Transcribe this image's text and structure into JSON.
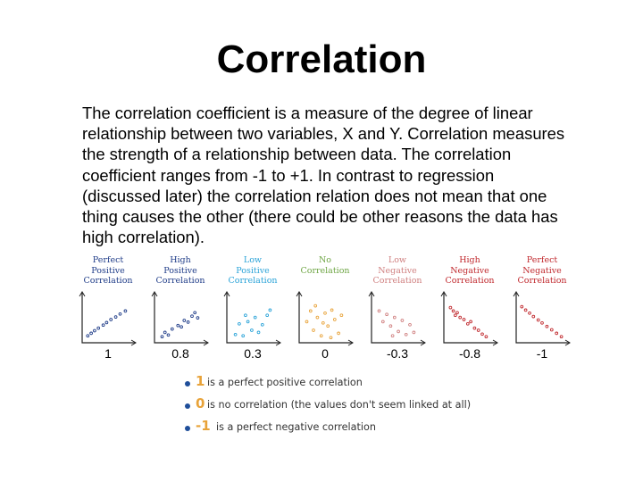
{
  "slide": {
    "title": "Correlation",
    "body_lines": [
      "The correlation coefficient is a measure of the degree of linear",
      "relationship between two variables, X and Y. Correlation measures",
      "the strength of a relationship between data. The correlation",
      "coefficient ranges from -1 to +1. In contrast to regression",
      "(discussed later) the correlation relation does  not mean that one",
      "thing causes the other (there could be other reasons the data has",
      "high correlation)."
    ]
  },
  "figure": {
    "panels": [
      {
        "title_lines": [
          "Perfect",
          "Positive",
          "Correlation"
        ],
        "title_color": "#1f3c88",
        "point_color": "#1f3c88",
        "coefficient": "1",
        "points": [
          [
            0.08,
            0.12
          ],
          [
            0.15,
            0.18
          ],
          [
            0.22,
            0.24
          ],
          [
            0.3,
            0.3
          ],
          [
            0.4,
            0.37
          ],
          [
            0.47,
            0.43
          ],
          [
            0.56,
            0.5
          ],
          [
            0.66,
            0.56
          ],
          [
            0.75,
            0.63
          ],
          [
            0.86,
            0.7
          ]
        ]
      },
      {
        "title_lines": [
          "High",
          "Positive",
          "Correlation"
        ],
        "title_color": "#1f3c88",
        "point_color": "#1f3c88",
        "coefficient": "0.8",
        "points": [
          [
            0.12,
            0.1
          ],
          [
            0.18,
            0.2
          ],
          [
            0.25,
            0.14
          ],
          [
            0.33,
            0.28
          ],
          [
            0.45,
            0.36
          ],
          [
            0.52,
            0.33
          ],
          [
            0.58,
            0.48
          ],
          [
            0.66,
            0.44
          ],
          [
            0.74,
            0.58
          ],
          [
            0.8,
            0.66
          ],
          [
            0.86,
            0.54
          ]
        ]
      },
      {
        "title_lines": [
          "Low",
          "Positive",
          "Correlation"
        ],
        "title_color": "#2aa3d8",
        "point_color": "#2aa3d8",
        "coefficient": "0.3",
        "points": [
          [
            0.14,
            0.15
          ],
          [
            0.22,
            0.4
          ],
          [
            0.3,
            0.12
          ],
          [
            0.4,
            0.45
          ],
          [
            0.48,
            0.25
          ],
          [
            0.55,
            0.55
          ],
          [
            0.62,
            0.2
          ],
          [
            0.7,
            0.38
          ],
          [
            0.8,
            0.6
          ],
          [
            0.86,
            0.72
          ],
          [
            0.35,
            0.6
          ]
        ]
      },
      {
        "title_lines": [
          "No",
          "Correlation"
        ],
        "title_color": "#6ea544",
        "point_color": "#e8a33a",
        "coefficient": "0",
        "points": [
          [
            0.12,
            0.45
          ],
          [
            0.2,
            0.7
          ],
          [
            0.26,
            0.25
          ],
          [
            0.34,
            0.55
          ],
          [
            0.42,
            0.12
          ],
          [
            0.5,
            0.65
          ],
          [
            0.56,
            0.35
          ],
          [
            0.64,
            0.72
          ],
          [
            0.7,
            0.5
          ],
          [
            0.78,
            0.18
          ],
          [
            0.84,
            0.6
          ],
          [
            0.3,
            0.82
          ],
          [
            0.62,
            0.08
          ],
          [
            0.46,
            0.42
          ]
        ]
      },
      {
        "title_lines": [
          "Low",
          "Negative",
          "Correlation"
        ],
        "title_color": "#d08080",
        "point_color": "#d08080",
        "coefficient": "-0.3",
        "points": [
          [
            0.12,
            0.7
          ],
          [
            0.2,
            0.45
          ],
          [
            0.28,
            0.62
          ],
          [
            0.36,
            0.35
          ],
          [
            0.44,
            0.55
          ],
          [
            0.52,
            0.22
          ],
          [
            0.6,
            0.48
          ],
          [
            0.68,
            0.15
          ],
          [
            0.76,
            0.38
          ],
          [
            0.84,
            0.2
          ],
          [
            0.4,
            0.12
          ]
        ]
      },
      {
        "title_lines": [
          "High",
          "Negative",
          "Correlation"
        ],
        "title_color": "#c0282d",
        "point_color": "#c0282d",
        "coefficient": "-0.8",
        "points": [
          [
            0.1,
            0.78
          ],
          [
            0.16,
            0.7
          ],
          [
            0.24,
            0.66
          ],
          [
            0.3,
            0.55
          ],
          [
            0.38,
            0.5
          ],
          [
            0.46,
            0.4
          ],
          [
            0.52,
            0.45
          ],
          [
            0.6,
            0.3
          ],
          [
            0.68,
            0.25
          ],
          [
            0.76,
            0.16
          ],
          [
            0.84,
            0.1
          ],
          [
            0.2,
            0.6
          ]
        ]
      },
      {
        "title_lines": [
          "Perfect",
          "Negative",
          "Correlation"
        ],
        "title_color": "#c0282d",
        "point_color": "#c0282d",
        "coefficient": "-1",
        "points": [
          [
            0.08,
            0.8
          ],
          [
            0.16,
            0.72
          ],
          [
            0.24,
            0.65
          ],
          [
            0.32,
            0.57
          ],
          [
            0.42,
            0.49
          ],
          [
            0.5,
            0.42
          ],
          [
            0.6,
            0.34
          ],
          [
            0.7,
            0.26
          ],
          [
            0.8,
            0.18
          ],
          [
            0.9,
            0.1
          ]
        ]
      }
    ]
  },
  "legend": {
    "items": [
      {
        "number": "1",
        "number_color": "#e8a33a",
        "text": "is a perfect positive correlation"
      },
      {
        "number": "0",
        "number_color": "#e8a33a",
        "text": "is no correlation (the values don't seem linked at all)"
      },
      {
        "number": "-1",
        "number_color": "#e8a33a",
        "text": "is a perfect negative correlation"
      }
    ]
  }
}
